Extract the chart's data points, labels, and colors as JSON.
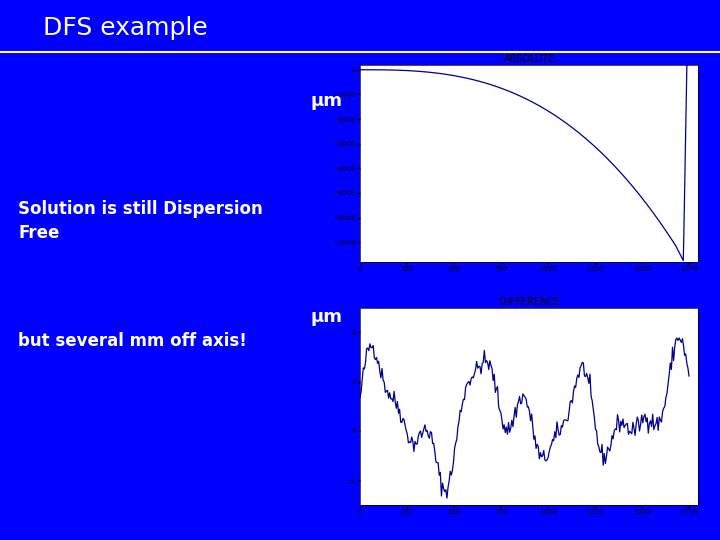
{
  "title": "DFS example",
  "title_color": "#ffffff",
  "background_color": "#0000ff",
  "line_color": "#00008b",
  "text_color": "#ffffff",
  "text1": "Solution is still Dispersion\nFree",
  "text2": "but several mm off axis!",
  "mu_label": "μm",
  "plot1_title": "ABSOLUTE",
  "plot2_title": "DIFFERENCE",
  "plot1_ylabel_ticks": [
    0,
    -1000,
    -2000,
    -3000,
    -4000,
    -5000,
    -6000,
    -7000
  ],
  "plot1_xticks": [
    0,
    250,
    500,
    750,
    1000,
    1250,
    1500,
    1750
  ],
  "plot1_ylim": [
    -7800,
    200
  ],
  "plot1_xlim": [
    0,
    1800
  ],
  "plot2_ylim": [
    -3,
    5
  ],
  "plot2_xlim": [
    0,
    1800
  ],
  "plot2_xticks": [
    0,
    250,
    500,
    750,
    1000,
    1250,
    1500,
    1750
  ],
  "plot2_yticks": [
    -2,
    0,
    2,
    4
  ],
  "fig_width": 7.2,
  "fig_height": 5.4,
  "fig_dpi": 100
}
